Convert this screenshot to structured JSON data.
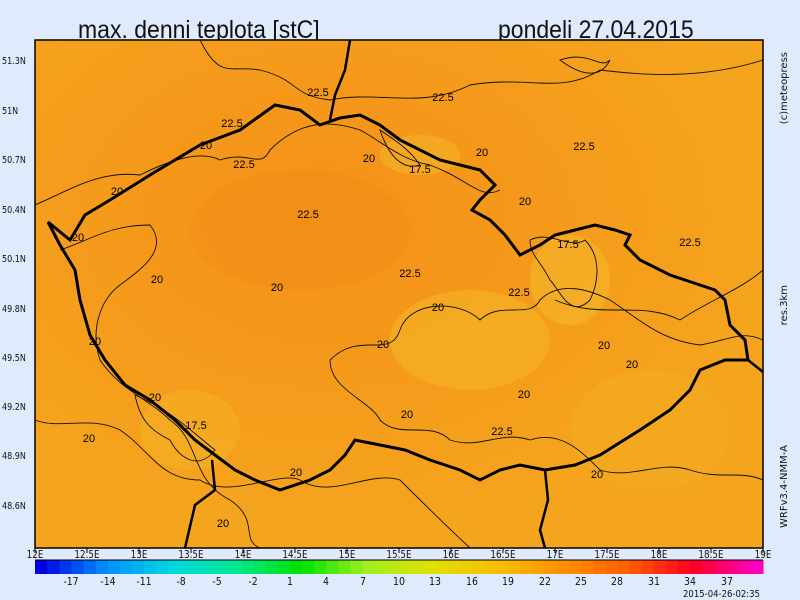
{
  "title": "max. denni teplota [stC]",
  "date": "pondeli 27.04.2015",
  "lat_labels": [
    "51.3N",
    "51N",
    "50.7N",
    "50.4N",
    "50.1N",
    "49.8N",
    "49.5N",
    "49.2N",
    "48.9N",
    "48.6N"
  ],
  "lon_labels": [
    "12E",
    "12.5E",
    "13E",
    "13.5E",
    "14E",
    "14.5E",
    "15E",
    "15.5E",
    "16E",
    "16.5E",
    "17E",
    "17.5E",
    "18E",
    "18.5E",
    "19E"
  ],
  "colorbar": {
    "range": [
      -20,
      40
    ],
    "ticks": [
      "-17",
      "-14",
      "-11",
      "-8",
      "-5",
      "-2",
      "1",
      "4",
      "7",
      "10",
      "13",
      "16",
      "19",
      "22",
      "25",
      "28",
      "31",
      "34",
      "37"
    ],
    "colors": [
      "#0000e0",
      "#0090ff",
      "#00d8e0",
      "#00e890",
      "#00e000",
      "#a0f020",
      "#e0e000",
      "#f8c000",
      "#ff9000",
      "#ff6000",
      "#ff0020",
      "#ff00c0"
    ]
  },
  "contour_levels": [
    "17.5",
    "20",
    "22.5"
  ],
  "contour_labels": [
    "22.5",
    "22.5",
    "22.5",
    "20",
    "22.5",
    "20",
    "17.5",
    "20",
    "22.5",
    "20",
    "20",
    "22.5",
    "20",
    "17.5",
    "22.5",
    "20",
    "22.5",
    "20",
    "22.5",
    "20",
    "20",
    "20",
    "20",
    "20",
    "20",
    "20",
    "17.5",
    "20",
    "22.5",
    "20",
    "20",
    "20",
    "20"
  ],
  "field_color": "#f5a21c",
  "credit": "(c)meteopress",
  "resolution": "res.3km",
  "model": "WRFv3.4-NMM-A",
  "run_stamp": "2015-04-26-02:35"
}
